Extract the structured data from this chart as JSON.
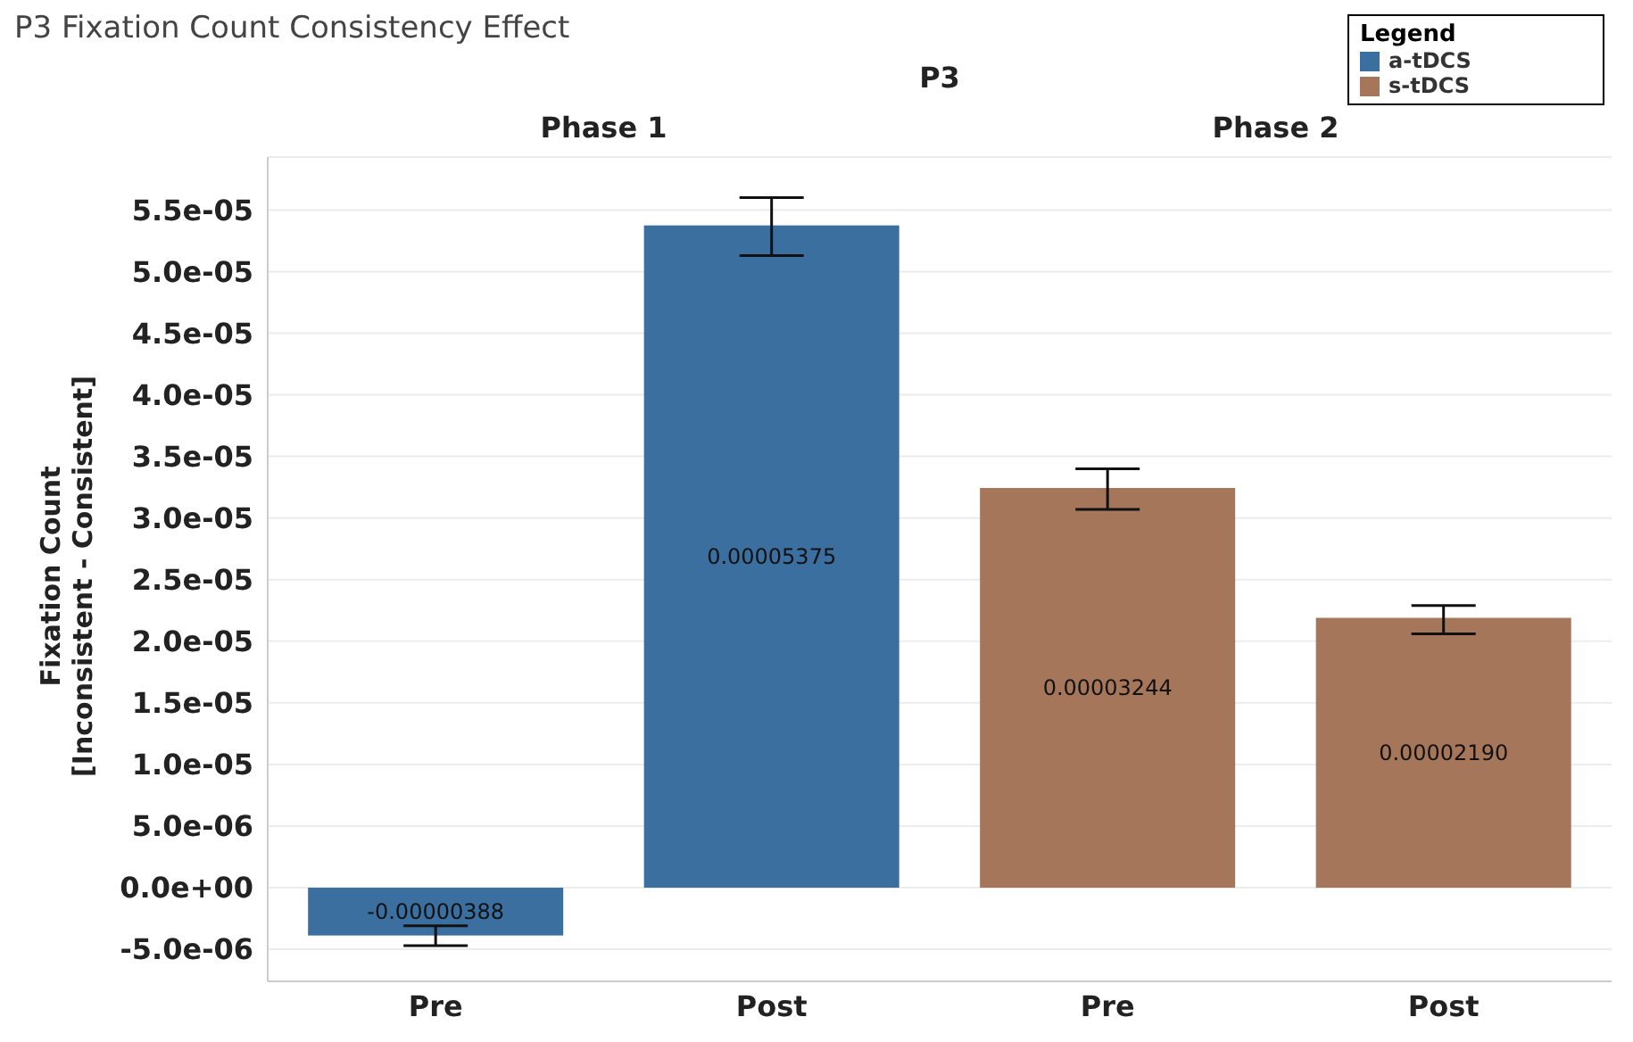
{
  "chart_data": {
    "type": "bar",
    "title": "P3 Fixation Count Consistency Effect",
    "ylabel": "Fixation Count\n[Inconsistent - Consistent]",
    "legend_title": "Legend",
    "annotations": [
      "P3",
      "Phase 1",
      "Phase 2"
    ],
    "categories": [
      "Pre",
      "Post",
      "Pre",
      "Post"
    ],
    "series": [
      {
        "name": "a-tDCS",
        "color": "#3a6fa0",
        "values": [
          -3.88e-06,
          5.375e-05,
          null,
          null
        ],
        "errors": [
          [
            -4.7e-06,
            -3.1e-06
          ],
          [
            5.13e-05,
            5.6e-05
          ],
          null,
          null
        ],
        "value_labels": [
          "-0.00000388",
          "0.00005375",
          null,
          null
        ]
      },
      {
        "name": "s-tDCS",
        "color": "#a5765a",
        "values": [
          null,
          null,
          3.244e-05,
          2.19e-05
        ],
        "errors": [
          null,
          null,
          [
            3.07e-05,
            3.4e-05
          ],
          [
            2.06e-05,
            2.29e-05
          ]
        ],
        "value_labels": [
          null,
          null,
          "0.00003244",
          "0.00002190"
        ]
      }
    ],
    "ylim": [
      -7.6e-06,
      5.93e-05
    ],
    "yticks": [
      {
        "value": -5e-06,
        "label": "-5.0e-06"
      },
      {
        "value": 0,
        "label": "0.0e+00"
      },
      {
        "value": 5e-06,
        "label": "5.0e-06"
      },
      {
        "value": 1e-05,
        "label": "1.0e-05"
      },
      {
        "value": 1.5e-05,
        "label": "1.5e-05"
      },
      {
        "value": 2e-05,
        "label": "2.0e-05"
      },
      {
        "value": 2.5e-05,
        "label": "2.5e-05"
      },
      {
        "value": 3e-05,
        "label": "3.0e-05"
      },
      {
        "value": 3.5e-05,
        "label": "3.5e-05"
      },
      {
        "value": 4e-05,
        "label": "4.0e-05"
      },
      {
        "value": 4.5e-05,
        "label": "4.5e-05"
      },
      {
        "value": 5e-05,
        "label": "5.0e-05"
      },
      {
        "value": 5.5e-05,
        "label": "5.5e-05"
      }
    ],
    "grid": "y",
    "legend": "top right"
  }
}
